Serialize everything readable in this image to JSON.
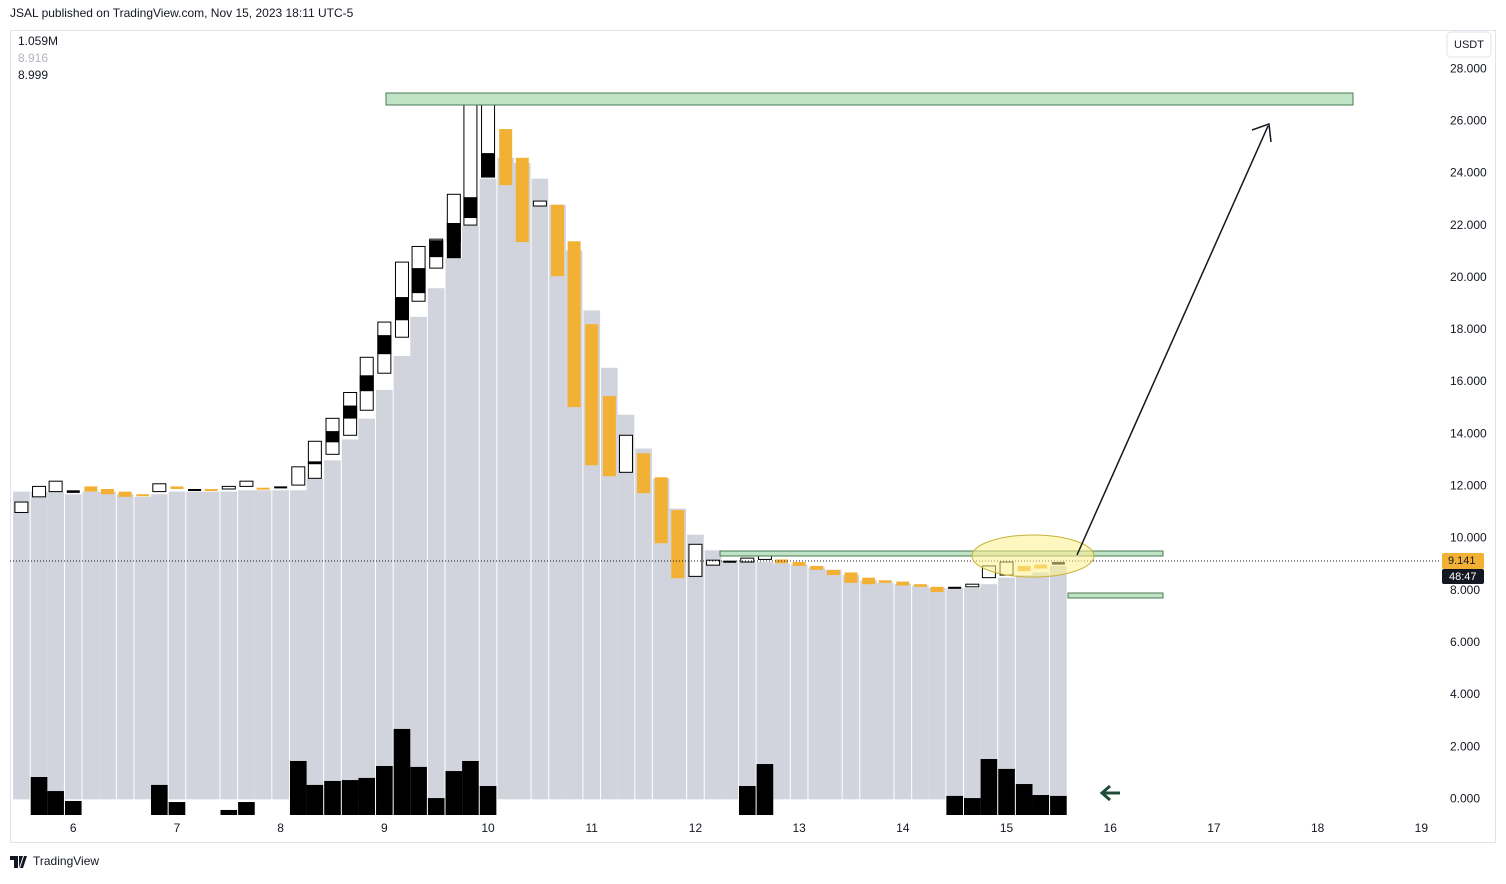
{
  "header": "JSAL published on TradingView.com, Nov 15, 2023 18:11 UTC-5",
  "footer": "TradingView",
  "currency": "USDT",
  "legend_values": [
    "1.059M",
    "8.916",
    "8.999"
  ],
  "chart_data": {
    "type": "candlestick",
    "x": [
      5.5,
      5.67,
      5.83,
      6,
      6.17,
      6.33,
      6.5,
      6.67,
      6.83,
      7,
      7.17,
      7.33,
      7.5,
      7.67,
      7.83,
      8,
      8.17,
      8.33,
      8.5,
      8.67,
      8.83,
      9,
      9.17,
      9.33,
      9.5,
      9.67,
      9.83,
      10,
      10.17,
      10.33,
      10.5,
      10.67,
      10.83,
      11,
      11.17,
      11.33,
      11.5,
      11.67,
      11.83,
      12,
      12.17,
      12.33,
      12.5,
      12.67,
      12.83,
      13,
      13.17,
      13.33,
      13.5,
      13.67,
      13.83,
      14,
      14.17,
      14.33,
      14.5,
      14.67,
      14.83,
      15,
      15.17,
      15.33,
      15.5
    ],
    "values": [
      11.8,
      11.8,
      11.8,
      11.7,
      11.8,
      11.8,
      11.7,
      11.6,
      11.7,
      11.8,
      11.8,
      11.8,
      11.8,
      11.85,
      11.85,
      11.85,
      11.85,
      12.3,
      13.0,
      13.8,
      14.6,
      15.7,
      17.0,
      18.5,
      19.6,
      20.75,
      22.0,
      23.8,
      24.6,
      24.4,
      23.8,
      22.8,
      21.05,
      18.75,
      16.55,
      14.75,
      13.45,
      12.3,
      11.15,
      10.15,
      9.55,
      9.15,
      9.1,
      9.1,
      9.05,
      9.0,
      8.9,
      8.8,
      8.6,
      8.4,
      8.3,
      8.25,
      8.2,
      8.1,
      8.1,
      8.1,
      8.25,
      8.5,
      8.6,
      8.7,
      8.95
    ],
    "color": "#d1d4dc",
    "candle_low": [
      11.0,
      11.6,
      11.8,
      11.75,
      11.8,
      11.7,
      11.6,
      11.65,
      11.8,
      11.9,
      11.85,
      11.85,
      11.9,
      12.0,
      11.9,
      11.95,
      12.05,
      12.31,
      13.23,
      13.96,
      14.92,
      16.34,
      17.72,
      19.1,
      20.37,
      21.37,
      22.02,
      23.86,
      23.55,
      21.37,
      22.75,
      20.06,
      15.04,
      12.81,
      12.39,
      12.54,
      11.74,
      9.82,
      8.48,
      8.55,
      8.98,
      9.1,
      9.1,
      9.2,
      9.05,
      8.95,
      8.8,
      8.6,
      8.3,
      8.25,
      8.3,
      8.2,
      8.15,
      7.95,
      8.1,
      8.15,
      8.5,
      8.6,
      8.75,
      8.85,
      9.0
    ],
    "candle_high": [
      11.4,
      12.0,
      12.2,
      11.85,
      12.0,
      11.9,
      11.8,
      11.7,
      12.1,
      12.0,
      11.9,
      11.9,
      12.0,
      12.2,
      11.95,
      12.0,
      12.75,
      13.73,
      14.61,
      15.6,
      16.95,
      18.3,
      20.6,
      21.2,
      21.48,
      23.2,
      26.93,
      27.0,
      25.7,
      24.6,
      22.94,
      22.8,
      21.4,
      18.22,
      15.46,
      13.96,
      13.27,
      12.35,
      11.09,
      9.78,
      9.17,
      9.15,
      9.25,
      9.45,
      9.2,
      9.1,
      8.95,
      8.8,
      8.7,
      8.5,
      8.4,
      8.35,
      8.25,
      8.15,
      8.15,
      8.25,
      8.95,
      9.1,
      8.95,
      9.0,
      9.1
    ],
    "candle_style": [
      "hollow",
      "hollow",
      "hollow",
      "black",
      "orange",
      "orange",
      "orange",
      "orange",
      "hollow",
      "orange",
      "black",
      "orange",
      "hollow",
      "hollow",
      "orange",
      "black",
      "hollow",
      "hollow",
      "hollow",
      "hollow",
      "hollow",
      "hollow",
      "hollow",
      "hollow",
      "hollow",
      "hollow",
      "hollow",
      "hollow",
      "orange",
      "orange",
      "hollow",
      "orange",
      "orange",
      "orange",
      "orange",
      "hollow",
      "orange",
      "orange",
      "orange",
      "hollow",
      "hollow",
      "black",
      "hollow",
      "hollow",
      "orange",
      "orange",
      "orange",
      "orange",
      "orange",
      "orange",
      "orange",
      "orange",
      "orange",
      "orange",
      "black",
      "hollow",
      "hollow",
      "hollow",
      "orange",
      "orange",
      "black"
    ],
    "candle_colors": {
      "hollow": "#ffffff",
      "orange": "#f2b134",
      "black": "#000000"
    },
    "block_low": [
      null,
      null,
      null,
      null,
      null,
      null,
      null,
      null,
      null,
      null,
      null,
      null,
      null,
      null,
      null,
      null,
      null,
      12.85,
      13.69,
      14.6,
      15.65,
      17.07,
      18.37,
      19.41,
      20.79,
      20.75,
      22.29,
      23.86,
      null,
      null,
      null,
      null,
      null,
      null,
      null,
      null,
      null,
      null,
      null,
      null,
      null,
      null,
      null,
      null,
      null,
      null,
      null,
      null,
      null,
      null,
      null,
      null,
      null,
      null,
      null,
      null,
      null,
      null,
      null,
      null,
      null
    ],
    "block_high": [
      null,
      null,
      null,
      null,
      null,
      null,
      null,
      null,
      null,
      null,
      null,
      null,
      null,
      null,
      null,
      null,
      null,
      12.96,
      14.12,
      15.1,
      16.26,
      17.8,
      19.26,
      20.37,
      21.44,
      22.1,
      23.09,
      24.78,
      null,
      null,
      null,
      null,
      null,
      null,
      null,
      null,
      null,
      null,
      null,
      null,
      null,
      null,
      null,
      null,
      null,
      null,
      null,
      null,
      null,
      null,
      null,
      null,
      null,
      null,
      null,
      null,
      null,
      null,
      null,
      null,
      null
    ],
    "volume": [
      null,
      2.11,
      1.33,
      0.78,
      null,
      null,
      null,
      null,
      1.67,
      0.72,
      null,
      null,
      0.28,
      0.72,
      null,
      null,
      3.0,
      1.67,
      1.89,
      1.94,
      2.06,
      2.72,
      4.78,
      2.67,
      0.94,
      2.44,
      3.0,
      1.61,
      null,
      null,
      null,
      null,
      null,
      null,
      null,
      null,
      null,
      null,
      null,
      null,
      null,
      null,
      1.61,
      2.83,
      null,
      null,
      null,
      null,
      null,
      null,
      null,
      null,
      null,
      null,
      1.06,
      0.94,
      3.11,
      2.56,
      1.72,
      1.11,
      1.059
    ],
    "volume_color": "#000000",
    "volume_lim": [
      0,
      43.6
    ],
    "last_price": {
      "value": 9.141,
      "label": "9.141"
    },
    "countdown": "48:47",
    "xlim": [
      5.39,
      19.18
    ],
    "xticks": [
      6,
      7,
      8,
      9,
      10,
      11,
      12,
      13,
      14,
      15,
      16,
      17,
      18,
      19
    ],
    "ylim": [
      -0.6,
      29.5
    ],
    "yticks": [
      {
        "value": 0,
        "label": "0.000"
      },
      {
        "value": 2,
        "label": "2.000"
      },
      {
        "value": 4,
        "label": "4.000"
      },
      {
        "value": 6,
        "label": "6.000"
      },
      {
        "value": 8,
        "label": "8.000"
      },
      {
        "value": 10,
        "label": "10.000"
      },
      {
        "value": 12,
        "label": "12.000"
      },
      {
        "value": 14,
        "label": "14.000"
      },
      {
        "value": 16,
        "label": "16.000"
      },
      {
        "value": 18,
        "label": "18.000"
      },
      {
        "value": 20,
        "label": "20.000"
      },
      {
        "value": 22,
        "label": "22.000"
      },
      {
        "value": 24,
        "label": "24.000"
      },
      {
        "value": 26,
        "label": "26.000"
      },
      {
        "value": 28,
        "label": "28.000"
      }
    ],
    "grid": false
  }
}
